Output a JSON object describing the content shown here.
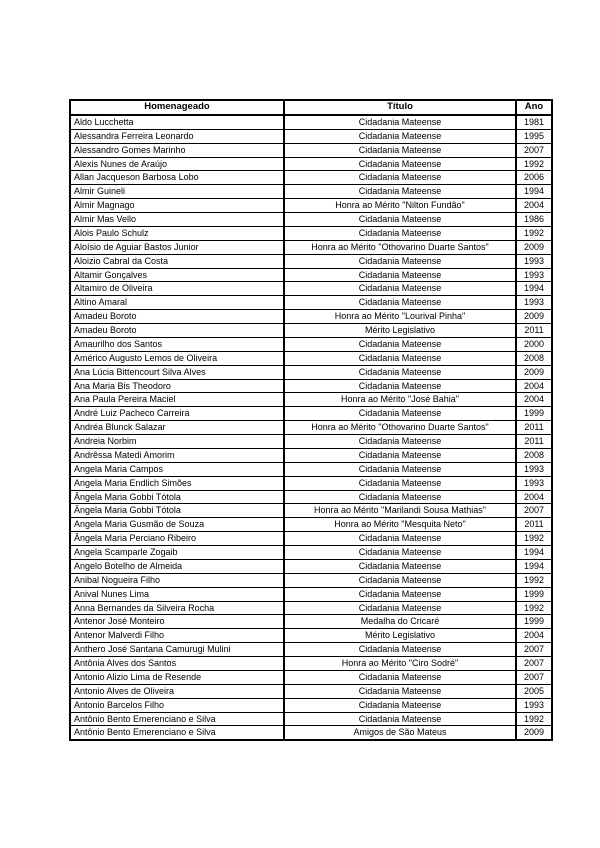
{
  "colors": {
    "page_background": "#ffffff",
    "table_border": "#000000",
    "text": "#000000"
  },
  "table": {
    "columns": [
      "Homenageado",
      "Título",
      "Ano"
    ],
    "rows": [
      [
        "Aldo Lucchetta",
        "Cidadania Mateense",
        "1981"
      ],
      [
        "Alessandra Ferreira Leonardo",
        "Cidadania Mateense",
        "1995"
      ],
      [
        "Alessandro Gomes Marinho",
        "Cidadania Mateense",
        "2007"
      ],
      [
        "Alexis Nunes de Araújo",
        "Cidadania Mateense",
        "1992"
      ],
      [
        "Allan Jacqueson Barbosa Lobo",
        "Cidadania Mateense",
        "2006"
      ],
      [
        "Almir Guineli",
        "Cidadania Mateense",
        "1994"
      ],
      [
        "Almir Magnago",
        "Honra ao Mérito \"Nilton Fundão\"",
        "2004"
      ],
      [
        "Almir Mas Vello",
        "Cidadania Mateense",
        "1986"
      ],
      [
        "Alois Paulo Schulz",
        "Cidadania Mateense",
        "1992"
      ],
      [
        "Aloísio de Aguiar Bastos Junior",
        "Honra ao Mérito \"Othovarino Duarte Santos\"",
        "2009"
      ],
      [
        "Aloizio Cabral da Costa",
        "Cidadania Mateense",
        "1993"
      ],
      [
        "Altamir Gonçalves",
        "Cidadania Mateense",
        "1993"
      ],
      [
        "Altamiro de Oliveira",
        "Cidadania Mateense",
        "1994"
      ],
      [
        "Altino Amaral",
        "Cidadania Mateense",
        "1993"
      ],
      [
        "Amadeu Boroto",
        "Honra ao Mérito \"Lourival Pinha\"",
        "2009"
      ],
      [
        "Amadeu Boroto",
        "Mérito Legislativo",
        "2011"
      ],
      [
        "Amaurilho dos Santos",
        "Cidadania Mateense",
        "2000"
      ],
      [
        "Américo Augusto Lemos de Oliveira",
        "Cidadania Mateense",
        "2008"
      ],
      [
        "Ana Lúcia Bittencourt Silva Alves",
        "Cidadania Mateense",
        "2009"
      ],
      [
        "Ana Maria Bis Theodoro",
        "Cidadania Mateense",
        "2004"
      ],
      [
        "Ana Paula Pereira Maciel",
        "Honra ao Mérito \"José Bahia\"",
        "2004"
      ],
      [
        "André Luiz Pacheco Carreira",
        "Cidadania Mateense",
        "1999"
      ],
      [
        "Andréa Blunck Salazar",
        "Honra ao Mérito \"Othovarino Duarte Santos\"",
        "2011"
      ],
      [
        "Andreia Norbim",
        "Cidadania Mateense",
        "2011"
      ],
      [
        "Andrêssa Matedi Amorim",
        "Cidadania Mateense",
        "2008"
      ],
      [
        "Angela Maria Campos",
        "Cidadania Mateense",
        "1993"
      ],
      [
        "Angela Maria Endlich Simões",
        "Cidadania Mateense",
        "1993"
      ],
      [
        "Ângela Maria Gobbi Tótola",
        "Cidadania Mateense",
        "2004"
      ],
      [
        "Ângela Maria Gobbi Tótola",
        "Honra ao Mérito \"Marilandi Sousa Mathias\"",
        "2007"
      ],
      [
        "Angela Maria Gusmão de Souza",
        "Honra ao Mérito \"Mesquita Neto\"",
        "2011"
      ],
      [
        "Ângela Maria Perciano Ribeiro",
        "Cidadania Mateense",
        "1992"
      ],
      [
        "Angela Scamparle Zogaib",
        "Cidadania Mateense",
        "1994"
      ],
      [
        "Angelo Botelho de Almeida",
        "Cidadania Mateense",
        "1994"
      ],
      [
        "Anibal Nogueira Filho",
        "Cidadania Mateense",
        "1992"
      ],
      [
        "Anival Nunes Lima",
        "Cidadania Mateense",
        "1999"
      ],
      [
        "Anna Bernandes da Silveira Rocha",
        "Cidadania Mateense",
        "1992"
      ],
      [
        "Antenor José Monteiro",
        "Medalha do Cricaré",
        "1999"
      ],
      [
        "Antenor Malverdi Filho",
        "Mérito Legislativo",
        "2004"
      ],
      [
        "Anthero José Santana Camurugi Mulini",
        "Cidadania Mateense",
        "2007"
      ],
      [
        "Antônia Alves dos Santos",
        "Honra ao Mérito \"Ciro Sodré\"",
        "2007"
      ],
      [
        "Antonio Alizio Lima de Resende",
        "Cidadania Mateense",
        "2007"
      ],
      [
        "Antonio Alves de Oliveira",
        "Cidadania Mateense",
        "2005"
      ],
      [
        "Antonio Barcelos Filho",
        "Cidadania Mateense",
        "1993"
      ],
      [
        "Antônio Bento Emerenciano e Silva",
        "Cidadania Mateense",
        "1992"
      ],
      [
        "Antônio Bento Emerenciano e Silva",
        "Amigos de São Mateus",
        "2009"
      ]
    ]
  }
}
